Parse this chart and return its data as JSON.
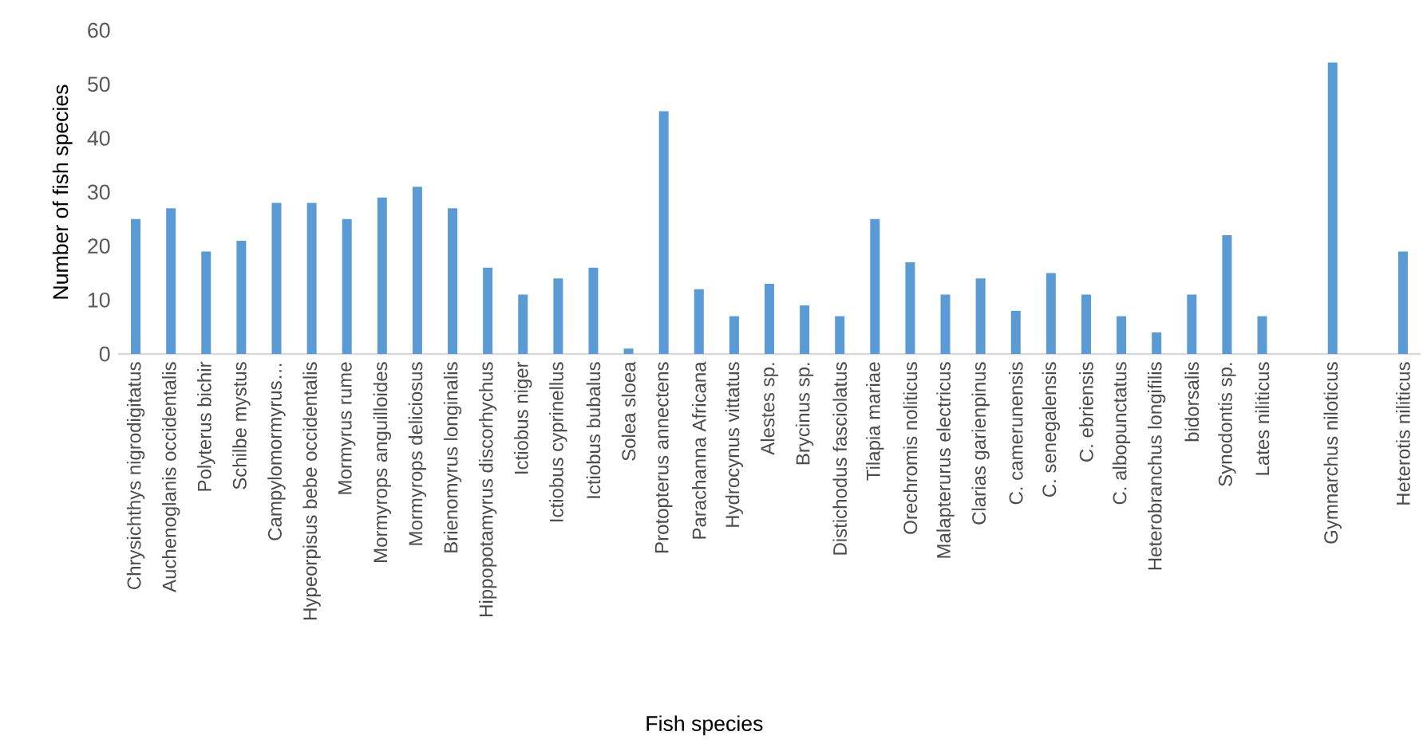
{
  "chart_data": {
    "type": "bar",
    "xlabel": "Fish species",
    "ylabel": "Number of fish species",
    "categories": [
      "Chrysichthys nigrodigitatus",
      "Auchenoglanis occidentalis",
      "Polyterus bichir",
      "Schilbe mystus",
      "Campylomormyrus…",
      "Hypeorpisus bebe occidentalis",
      "Mormyrus rume",
      "Mormyrops anguilloides",
      "Mormyrops deliciosus",
      "Brienomyrus longinalis",
      "Hippopotamyrus discorhychus",
      "Ictiobus niger",
      "Ictiobus cyprinellus",
      "Ictiobus bubalus",
      "Solea sloea",
      "Protopterus annectens",
      "Parachanna Africana",
      "Hydrocynus vittatus",
      "Alestes sp.",
      "Brycinus sp.",
      "Distichodus fasciolatus",
      "Tilapia mariae",
      "Orechromis noliticus",
      "Malapterurus electricus",
      "Clarias garienpinus",
      "C. camerunensis",
      "C. senegalensis",
      "C. ebriensis",
      "C. albopunctatus",
      "Heterobranchus longifilis",
      "bidorsalis",
      "Synodontis sp.",
      "Lates niliticus",
      null,
      "Gymnarchus niloticus",
      null,
      "Heterotis niliticus"
    ],
    "values": [
      25,
      27,
      19,
      21,
      28,
      28,
      25,
      29,
      31,
      27,
      16,
      11,
      14,
      16,
      1,
      45,
      12,
      7,
      13,
      9,
      7,
      25,
      17,
      11,
      14,
      8,
      15,
      11,
      7,
      4,
      11,
      22,
      7,
      null,
      54,
      null,
      19
    ],
    "color": "#5b9bd5",
    "ylim": [
      0,
      60
    ],
    "yticks": [
      0,
      10,
      20,
      30,
      40,
      50,
      60
    ]
  }
}
